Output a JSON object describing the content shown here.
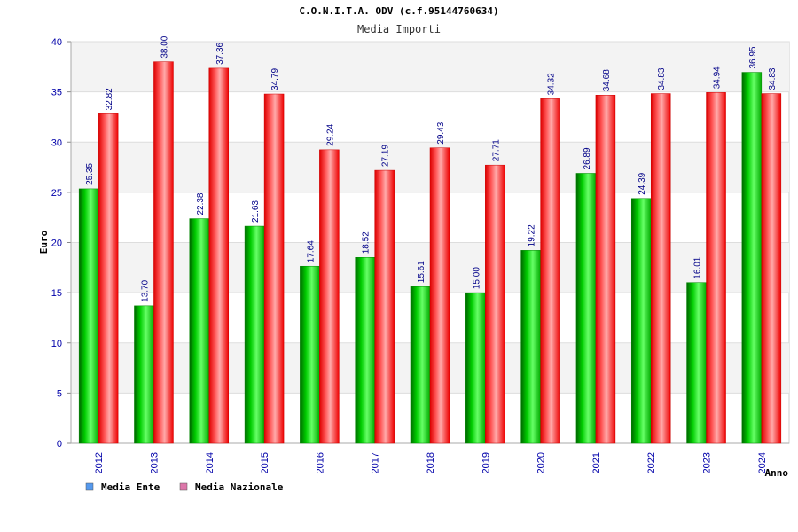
{
  "chart_data": {
    "type": "bar",
    "title": "C.O.N.I.T.A. ODV (c.f.95144760634)",
    "subtitle": "Media Importi",
    "xlabel": "Anno",
    "ylabel": "Euro",
    "ylim": [
      0,
      40
    ],
    "yticks": [
      0,
      5,
      10,
      15,
      20,
      25,
      30,
      35,
      40
    ],
    "grid": true,
    "legend_position": "bottom-left",
    "categories": [
      "2012",
      "2013",
      "2014",
      "2015",
      "2016",
      "2017",
      "2018",
      "2019",
      "2020",
      "2021",
      "2022",
      "2023",
      "2024"
    ],
    "series": [
      {
        "name": "Media Ente",
        "color": "#00bb00",
        "legend_color": "#5599ee",
        "values": [
          25.35,
          13.7,
          22.38,
          21.63,
          17.64,
          18.52,
          15.61,
          15.0,
          19.22,
          26.89,
          24.39,
          16.01,
          36.95
        ],
        "labels": [
          "25.35",
          "13.70",
          "22.38",
          "21.63",
          "17.64",
          "18.52",
          "15.61",
          "15.00",
          "19.22",
          "26.89",
          "24.39",
          "16.01",
          "36.95"
        ]
      },
      {
        "name": "Media Nazionale",
        "color": "#ee1111",
        "legend_color": "#dd77aa",
        "values": [
          32.82,
          38.0,
          37.36,
          34.79,
          29.24,
          27.19,
          29.43,
          27.71,
          34.32,
          34.68,
          34.83,
          34.94,
          34.83
        ],
        "labels": [
          "32.82",
          "38.00",
          "37.36",
          "34.79",
          "29.24",
          "27.19",
          "29.43",
          "27.71",
          "34.32",
          "34.68",
          "34.83",
          "34.94",
          "34.83"
        ]
      }
    ]
  }
}
